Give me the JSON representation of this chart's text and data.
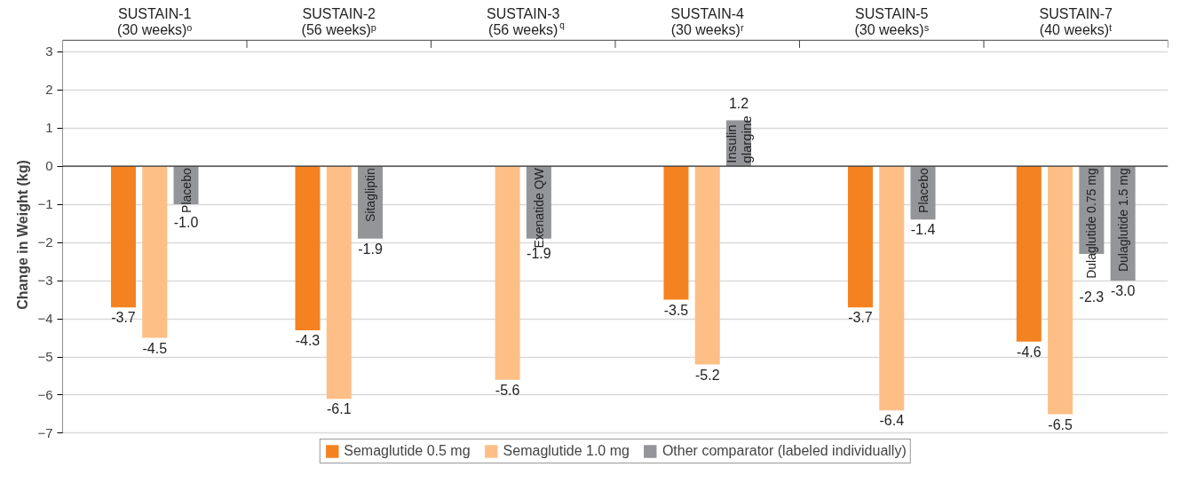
{
  "chart_data": {
    "type": "bar",
    "ylabel": "Change in Weight (kg)",
    "categories": [
      "SUSTAIN-1\n(30 weeks)ᵒ",
      "SUSTAIN-2\n(56 weeks)ᵖ",
      "SUSTAIN-3\n(56 weeks)$^{q}$",
      "SUSTAIN-4\n(30 weeks)ʳ",
      "SUSTAIN-5\n(30 weeks)ˢ",
      "SUSTAIN-7\n(40 weeks)ᵗ"
    ],
    "series": [
      {
        "name": "Semaglutide 0.5 mg",
        "color": "#f58220",
        "values": [
          -3.7,
          -4.3,
          null,
          -3.5,
          -3.7,
          -4.6
        ],
        "value_labels": [
          "-3.7",
          "-4.3",
          null,
          "-3.5",
          "-3.7",
          "-4.6"
        ]
      },
      {
        "name": "Semaglutide 1.0 mg",
        "color": "#fdbf86",
        "values": [
          -4.5,
          -6.1,
          -5.6,
          -5.2,
          -6.4,
          -6.5
        ],
        "value_labels": [
          "-4.5",
          "-6.1",
          "-5.6",
          "-5.2",
          "-6.4",
          "-6.5"
        ]
      },
      {
        "name": "Other comparator (labeled individually)",
        "color": "#939598",
        "values": [
          -1.0,
          -1.9,
          -1.9,
          1.2,
          -1.4,
          -2.3
        ],
        "value_labels": [
          "-1.0",
          "-1.9",
          "-1.9",
          "1.2",
          "-1.4",
          "-2.3"
        ]
      },
      {
        "color": "#939598",
        "values": [
          null,
          null,
          null,
          null,
          null,
          -3.0
        ],
        "value_labels": [
          null,
          null,
          null,
          null,
          null,
          "-3.0"
        ]
      }
    ],
    "annotations": [
      "Placebo",
      "Sitagliptin",
      "Exenatide QW",
      "Insulin\nglargine",
      "Placebo",
      "Dulaglutide 0.75 mg",
      "Dulaglutide 1.5 mg"
    ],
    "ylim": [
      -7,
      3.3
    ],
    "yticks": [
      -7,
      -6,
      -5,
      -4,
      -3,
      -2,
      -1,
      0,
      1,
      2,
      3
    ],
    "grid": "y",
    "legend": "bottom"
  }
}
